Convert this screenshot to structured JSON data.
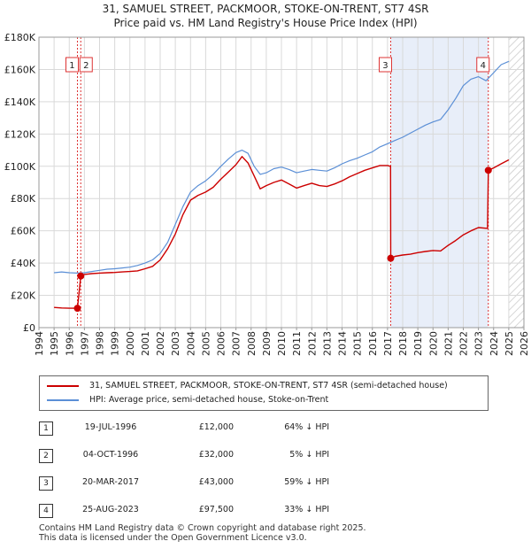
{
  "title": "31, SAMUEL STREET, PACKMOOR, STOKE-ON-TRENT, ST7 4SR",
  "subtitle": "Price paid vs. HM Land Registry's House Price Index (HPI)",
  "colors": {
    "price_line": "#cc0000",
    "hpi_line": "#5b8fd6",
    "shade": "#e8eef9",
    "grid": "#d9d9d9",
    "marker_line": "#dd3333"
  },
  "chart_data": {
    "type": "line",
    "title": "31, SAMUEL STREET, PACKMOOR, STOKE-ON-TRENT, ST7 4SR",
    "subtitle": "Price paid vs. HM Land Registry's House Price Index (HPI)",
    "xlim": [
      1994,
      2026
    ],
    "ylim": [
      0,
      180000
    ],
    "x_ticks": [
      1994,
      1995,
      1996,
      1997,
      1998,
      1999,
      2000,
      2001,
      2002,
      2003,
      2004,
      2005,
      2006,
      2007,
      2008,
      2009,
      2010,
      2011,
      2012,
      2013,
      2014,
      2015,
      2016,
      2017,
      2018,
      2019,
      2020,
      2021,
      2022,
      2023,
      2024,
      2025,
      2026
    ],
    "y_ticks": [
      0,
      20000,
      40000,
      60000,
      80000,
      100000,
      120000,
      140000,
      160000,
      180000
    ],
    "y_tick_labels": [
      "£0",
      "£20K",
      "£40K",
      "£60K",
      "£80K",
      "£100K",
      "£120K",
      "£140K",
      "£160K",
      "£180K"
    ],
    "grid": true,
    "shaded_ranges": [
      [
        2017.21,
        2023.65
      ]
    ],
    "future_hatch_from": 2025.0,
    "series": [
      {
        "name": "31, SAMUEL STREET, PACKMOOR, STOKE-ON-TRENT, ST7 4SR (semi-detached house)",
        "color": "#cc0000",
        "x": [
          1995.0,
          1995.5,
          1996.0,
          1996.54,
          1996.76,
          1997.0,
          1997.5,
          1998.0,
          1998.5,
          1999.0,
          1999.5,
          2000.0,
          2000.5,
          2001.0,
          2001.5,
          2002.0,
          2002.5,
          2003.0,
          2003.5,
          2004.0,
          2004.5,
          2005.0,
          2005.5,
          2006.0,
          2006.5,
          2007.0,
          2007.4,
          2007.8,
          2008.2,
          2008.6,
          2009.0,
          2009.5,
          2010.0,
          2010.5,
          2011.0,
          2011.5,
          2012.0,
          2012.5,
          2013.0,
          2013.5,
          2014.0,
          2014.5,
          2015.0,
          2015.5,
          2016.0,
          2016.5,
          2017.0,
          2017.2,
          2017.21,
          2017.5,
          2018.0,
          2018.5,
          2019.0,
          2019.5,
          2020.0,
          2020.5,
          2021.0,
          2021.5,
          2022.0,
          2022.5,
          2023.0,
          2023.6,
          2023.65,
          2024.0,
          2024.5,
          2025.0
        ],
        "y": [
          12500,
          12200,
          12000,
          12000,
          32000,
          33000,
          33500,
          33800,
          34000,
          34200,
          34500,
          34800,
          35200,
          36500,
          38000,
          42000,
          49000,
          58000,
          70000,
          79000,
          82000,
          84000,
          87000,
          92000,
          96500,
          101000,
          106000,
          102000,
          94000,
          86000,
          88000,
          90000,
          91500,
          89000,
          86500,
          88000,
          89500,
          88000,
          87500,
          89000,
          91000,
          93500,
          95500,
          97500,
          99000,
          100500,
          100500,
          100000,
          43000,
          44200,
          45000,
          45500,
          46500,
          47200,
          47800,
          47500,
          51000,
          54000,
          57500,
          60000,
          62000,
          61500,
          97500,
          99000,
          101500,
          104000
        ]
      },
      {
        "name": "HPI: Average price, semi-detached house, Stoke-on-Trent",
        "color": "#5b8fd6",
        "x": [
          1995.0,
          1995.5,
          1996.0,
          1996.5,
          1997.0,
          1997.5,
          1998.0,
          1998.5,
          1999.0,
          1999.5,
          2000.0,
          2000.5,
          2001.0,
          2001.5,
          2002.0,
          2002.5,
          2003.0,
          2003.5,
          2004.0,
          2004.5,
          2005.0,
          2005.5,
          2006.0,
          2006.5,
          2007.0,
          2007.4,
          2007.8,
          2008.2,
          2008.6,
          2009.0,
          2009.5,
          2010.0,
          2010.5,
          2011.0,
          2011.5,
          2012.0,
          2012.5,
          2013.0,
          2013.5,
          2014.0,
          2014.5,
          2015.0,
          2015.5,
          2016.0,
          2016.5,
          2017.0,
          2017.5,
          2018.0,
          2018.5,
          2019.0,
          2019.5,
          2020.0,
          2020.5,
          2021.0,
          2021.5,
          2022.0,
          2022.5,
          2023.0,
          2023.5,
          2024.0,
          2024.5,
          2025.0
        ],
        "y": [
          34000,
          34500,
          34000,
          33800,
          34000,
          34800,
          35500,
          36200,
          36500,
          37000,
          37500,
          38500,
          40000,
          42000,
          46000,
          53000,
          64000,
          75000,
          84000,
          88000,
          91000,
          95000,
          100000,
          104500,
          108500,
          110000,
          108000,
          100000,
          95000,
          96000,
          98500,
          99500,
          98000,
          96000,
          97000,
          98000,
          97500,
          97000,
          99000,
          101500,
          103500,
          105000,
          107000,
          109000,
          112000,
          114000,
          116000,
          118000,
          120500,
          123000,
          125500,
          127500,
          129000,
          135000,
          142000,
          150000,
          154000,
          155500,
          153000,
          158000,
          163000,
          165000
        ]
      }
    ],
    "transactions": [
      {
        "num": "1",
        "date": "19-JUL-1996",
        "x": 1996.54,
        "price_label": "£12,000",
        "price": 12000,
        "hpi": "64% ↓ HPI"
      },
      {
        "num": "2",
        "date": "04-OCT-1996",
        "x": 1996.76,
        "price_label": "£32,000",
        "price": 32000,
        "hpi": "5% ↓ HPI"
      },
      {
        "num": "3",
        "date": "20-MAR-2017",
        "x": 2017.21,
        "price_label": "£43,000",
        "price": 43000,
        "hpi": "59% ↓ HPI"
      },
      {
        "num": "4",
        "date": "25-AUG-2023",
        "x": 2023.65,
        "price_label": "£97,500",
        "price": 97500,
        "hpi": "33% ↓ HPI"
      }
    ]
  },
  "legend": {
    "price_label": "31, SAMUEL STREET, PACKMOOR, STOKE-ON-TRENT, ST7 4SR (semi-detached house)",
    "hpi_label": "HPI: Average price, semi-detached house, Stoke-on-Trent"
  },
  "footer": {
    "line1": "Contains HM Land Registry data © Crown copyright and database right 2025.",
    "line2": "This data is licensed under the Open Government Licence v3.0."
  }
}
